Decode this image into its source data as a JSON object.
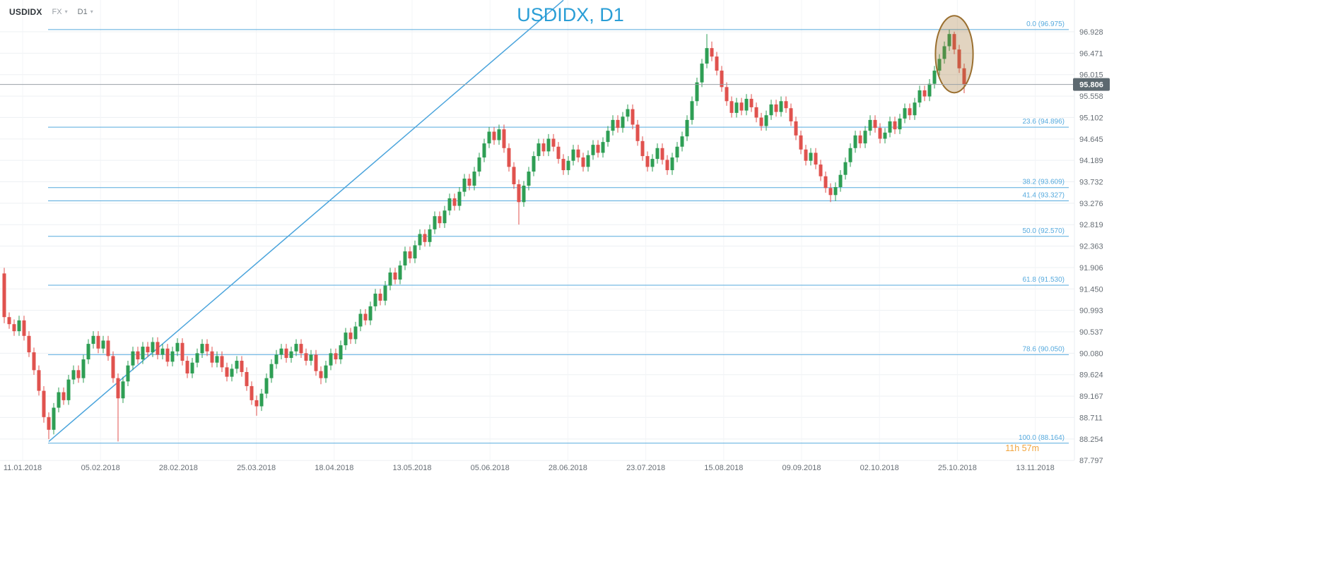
{
  "instrument_bar": {
    "symbol": "USDIDX",
    "market": "FX",
    "timeframe": "D1"
  },
  "icons": {
    "chevron_down": "▾"
  },
  "chart_title": "USDIDX, D1",
  "current_price": "95.806",
  "countdown": "11h 57m",
  "chart_data": {
    "type": "candlestick",
    "symbol": "USDIDX",
    "timeframe": "D1",
    "title": "USDIDX, D1",
    "grid": true,
    "ylim": [
      87.797,
      96.928
    ],
    "price_tick_labels": [
      "96.928",
      "96.471",
      "96.015",
      "95.558",
      "95.102",
      "94.645",
      "94.189",
      "93.732",
      "93.276",
      "92.819",
      "92.363",
      "91.906",
      "91.450",
      "90.993",
      "90.537",
      "90.080",
      "89.624",
      "89.167",
      "88.711",
      "88.254",
      "87.797"
    ],
    "date_tick_labels": [
      "11.01.2018",
      "05.02.2018",
      "28.02.2018",
      "25.03.2018",
      "18.04.2018",
      "13.05.2018",
      "05.06.2018",
      "28.06.2018",
      "23.07.2018",
      "15.08.2018",
      "09.09.2018",
      "02.10.2018",
      "25.10.2018",
      "13.11.2018"
    ],
    "current_price": 95.806,
    "fib_levels": [
      {
        "label": "0.0 (96.975)",
        "price": 96.975
      },
      {
        "label": "23.6 (94.896)",
        "price": 94.896
      },
      {
        "label": "38.2 (93.609)",
        "price": 93.609
      },
      {
        "label": "41.4 (93.327)",
        "price": 93.327
      },
      {
        "label": "50.0 (92.570)",
        "price": 92.57
      },
      {
        "label": "61.8 (91.530)",
        "price": 91.53
      },
      {
        "label": "78.6 (90.050)",
        "price": 90.05
      },
      {
        "label": "100.0 (88.164)",
        "price": 88.164
      }
    ],
    "trendline": {
      "bar1": 9,
      "price1": 88.2,
      "bar2": 113,
      "price2": 97.6
    },
    "highlight_ellipse": {
      "bar": 192,
      "price": 96.45,
      "rx_bars": 3.8,
      "ry_price": 0.82
    },
    "colors": {
      "up": "#2e9e54",
      "down": "#e0524e",
      "fib": "#56aade",
      "trend": "#4aa4dc",
      "title": "#2a9ed6",
      "price_line": "#9aa1a7",
      "badge_bg": "#5d6970",
      "badge_text": "#ffffff",
      "countdown": "#f1a53e",
      "axis_text": "#676e75",
      "grid_h": "#edf0f3",
      "grid_v": "#f3f5f7"
    },
    "candles": [
      [
        91.78,
        91.9,
        90.72,
        90.85
      ],
      [
        90.85,
        90.95,
        90.6,
        90.7
      ],
      [
        90.7,
        90.8,
        90.45,
        90.55
      ],
      [
        90.55,
        90.88,
        90.45,
        90.78
      ],
      [
        90.78,
        90.88,
        90.35,
        90.45
      ],
      [
        90.45,
        90.55,
        90.0,
        90.1
      ],
      [
        90.1,
        90.2,
        89.62,
        89.72
      ],
      [
        89.72,
        89.82,
        89.18,
        89.28
      ],
      [
        89.28,
        89.38,
        88.6,
        88.72
      ],
      [
        88.72,
        88.82,
        88.25,
        88.45
      ],
      [
        88.45,
        89.02,
        88.35,
        88.92
      ],
      [
        88.92,
        89.35,
        88.82,
        89.25
      ],
      [
        89.25,
        89.35,
        88.98,
        89.08
      ],
      [
        89.08,
        89.62,
        88.98,
        89.52
      ],
      [
        89.52,
        89.82,
        89.42,
        89.72
      ],
      [
        89.72,
        89.82,
        89.45,
        89.55
      ],
      [
        89.55,
        90.05,
        89.45,
        89.95
      ],
      [
        89.95,
        90.38,
        89.85,
        90.28
      ],
      [
        90.28,
        90.55,
        90.18,
        90.45
      ],
      [
        90.45,
        90.55,
        90.08,
        90.18
      ],
      [
        90.18,
        90.45,
        90.08,
        90.35
      ],
      [
        90.35,
        90.45,
        89.92,
        90.02
      ],
      [
        90.02,
        90.12,
        89.45,
        89.55
      ],
      [
        89.55,
        89.65,
        88.2,
        89.12
      ],
      [
        89.12,
        89.58,
        89.02,
        89.48
      ],
      [
        89.48,
        89.92,
        89.38,
        89.82
      ],
      [
        89.82,
        90.22,
        89.72,
        90.12
      ],
      [
        90.12,
        90.22,
        89.85,
        89.95
      ],
      [
        89.95,
        90.32,
        89.85,
        90.22
      ],
      [
        90.22,
        90.32,
        90.0,
        90.1
      ],
      [
        90.1,
        90.42,
        90.0,
        90.32
      ],
      [
        90.32,
        90.42,
        89.95,
        90.05
      ],
      [
        90.05,
        90.28,
        89.95,
        90.18
      ],
      [
        90.18,
        90.28,
        89.8,
        89.9
      ],
      [
        89.9,
        90.22,
        89.8,
        90.12
      ],
      [
        90.12,
        90.4,
        90.02,
        90.3
      ],
      [
        90.3,
        90.4,
        89.82,
        89.92
      ],
      [
        89.92,
        90.02,
        89.55,
        89.65
      ],
      [
        89.65,
        89.98,
        89.55,
        89.88
      ],
      [
        89.88,
        90.18,
        89.78,
        90.08
      ],
      [
        90.08,
        90.38,
        89.98,
        90.28
      ],
      [
        90.28,
        90.38,
        90.02,
        90.12
      ],
      [
        90.12,
        90.22,
        89.78,
        89.88
      ],
      [
        89.88,
        90.12,
        89.78,
        90.02
      ],
      [
        90.02,
        90.12,
        89.68,
        89.78
      ],
      [
        89.78,
        89.88,
        89.48,
        89.58
      ],
      [
        89.58,
        89.85,
        89.48,
        89.75
      ],
      [
        89.75,
        90.02,
        89.65,
        89.92
      ],
      [
        89.92,
        90.02,
        89.58,
        89.68
      ],
      [
        89.68,
        89.78,
        89.28,
        89.38
      ],
      [
        89.38,
        89.48,
        88.98,
        89.08
      ],
      [
        89.08,
        89.18,
        88.75,
        88.95
      ],
      [
        88.95,
        89.32,
        88.85,
        89.22
      ],
      [
        89.22,
        89.65,
        89.12,
        89.55
      ],
      [
        89.55,
        89.95,
        89.45,
        89.85
      ],
      [
        89.85,
        90.15,
        89.75,
        90.05
      ],
      [
        90.05,
        90.28,
        89.95,
        90.18
      ],
      [
        90.18,
        90.28,
        89.88,
        89.98
      ],
      [
        89.98,
        90.22,
        89.88,
        90.12
      ],
      [
        90.12,
        90.38,
        90.02,
        90.28
      ],
      [
        90.28,
        90.38,
        89.98,
        90.08
      ],
      [
        90.08,
        90.18,
        89.82,
        89.92
      ],
      [
        89.92,
        90.15,
        89.82,
        90.05
      ],
      [
        90.05,
        90.15,
        89.6,
        89.7
      ],
      [
        89.7,
        89.8,
        89.42,
        89.55
      ],
      [
        89.55,
        89.92,
        89.45,
        89.82
      ],
      [
        89.82,
        90.18,
        89.72,
        90.08
      ],
      [
        90.08,
        90.18,
        89.85,
        89.95
      ],
      [
        89.95,
        90.35,
        89.85,
        90.25
      ],
      [
        90.25,
        90.62,
        90.15,
        90.52
      ],
      [
        90.52,
        90.62,
        90.28,
        90.38
      ],
      [
        90.38,
        90.75,
        90.28,
        90.65
      ],
      [
        90.65,
        91.02,
        90.55,
        90.92
      ],
      [
        90.92,
        91.02,
        90.68,
        90.78
      ],
      [
        90.78,
        91.18,
        90.68,
        91.08
      ],
      [
        91.08,
        91.45,
        90.98,
        91.35
      ],
      [
        91.35,
        91.45,
        91.1,
        91.2
      ],
      [
        91.2,
        91.62,
        91.1,
        91.52
      ],
      [
        91.52,
        91.9,
        91.42,
        91.8
      ],
      [
        91.8,
        91.9,
        91.55,
        91.65
      ],
      [
        91.65,
        92.05,
        91.55,
        91.95
      ],
      [
        91.95,
        92.35,
        91.85,
        92.25
      ],
      [
        92.25,
        92.35,
        92.0,
        92.1
      ],
      [
        92.1,
        92.48,
        92.0,
        92.38
      ],
      [
        92.38,
        92.72,
        92.28,
        92.62
      ],
      [
        92.62,
        92.72,
        92.35,
        92.45
      ],
      [
        92.45,
        92.82,
        92.35,
        92.72
      ],
      [
        92.72,
        93.1,
        92.62,
        93.0
      ],
      [
        93.0,
        93.1,
        92.75,
        92.85
      ],
      [
        92.85,
        93.22,
        92.75,
        93.12
      ],
      [
        93.12,
        93.48,
        93.02,
        93.38
      ],
      [
        93.38,
        93.48,
        93.12,
        93.22
      ],
      [
        93.22,
        93.62,
        93.12,
        93.52
      ],
      [
        93.52,
        93.9,
        93.42,
        93.8
      ],
      [
        93.8,
        93.9,
        93.55,
        93.65
      ],
      [
        93.65,
        94.05,
        93.55,
        93.95
      ],
      [
        93.95,
        94.35,
        93.85,
        94.25
      ],
      [
        94.25,
        94.65,
        94.15,
        94.55
      ],
      [
        94.55,
        94.9,
        94.45,
        94.8
      ],
      [
        94.8,
        94.9,
        94.52,
        94.62
      ],
      [
        94.62,
        94.95,
        94.52,
        94.85
      ],
      [
        94.85,
        94.95,
        94.35,
        94.45
      ],
      [
        94.45,
        94.55,
        93.95,
        94.05
      ],
      [
        94.05,
        94.15,
        93.58,
        93.68
      ],
      [
        93.68,
        93.78,
        92.82,
        93.3
      ],
      [
        93.3,
        93.75,
        93.2,
        93.65
      ],
      [
        93.65,
        94.05,
        93.55,
        93.95
      ],
      [
        93.95,
        94.38,
        93.85,
        94.28
      ],
      [
        94.28,
        94.65,
        94.18,
        94.55
      ],
      [
        94.55,
        94.65,
        94.28,
        94.38
      ],
      [
        94.38,
        94.75,
        94.28,
        94.65
      ],
      [
        94.65,
        94.75,
        94.38,
        94.48
      ],
      [
        94.48,
        94.58,
        94.12,
        94.22
      ],
      [
        94.22,
        94.32,
        93.88,
        93.98
      ],
      [
        93.98,
        94.28,
        93.88,
        94.18
      ],
      [
        94.18,
        94.52,
        94.08,
        94.42
      ],
      [
        94.42,
        94.52,
        94.15,
        94.25
      ],
      [
        94.25,
        94.35,
        93.95,
        94.05
      ],
      [
        94.05,
        94.4,
        93.95,
        94.3
      ],
      [
        94.3,
        94.62,
        94.2,
        94.52
      ],
      [
        94.52,
        94.62,
        94.25,
        94.35
      ],
      [
        94.35,
        94.68,
        94.25,
        94.58
      ],
      [
        94.58,
        94.92,
        94.48,
        94.82
      ],
      [
        94.82,
        95.15,
        94.72,
        95.05
      ],
      [
        95.05,
        95.15,
        94.78,
        94.88
      ],
      [
        94.88,
        95.22,
        94.78,
        95.12
      ],
      [
        95.12,
        95.38,
        95.02,
        95.28
      ],
      [
        95.28,
        95.38,
        94.85,
        94.95
      ],
      [
        94.95,
        95.05,
        94.5,
        94.6
      ],
      [
        94.6,
        94.7,
        94.18,
        94.28
      ],
      [
        94.28,
        94.38,
        93.95,
        94.05
      ],
      [
        94.05,
        94.32,
        93.95,
        94.22
      ],
      [
        94.22,
        94.55,
        94.12,
        94.45
      ],
      [
        94.45,
        94.55,
        94.1,
        94.2
      ],
      [
        94.2,
        94.3,
        93.88,
        93.98
      ],
      [
        93.98,
        94.35,
        93.88,
        94.25
      ],
      [
        94.25,
        94.58,
        94.15,
        94.48
      ],
      [
        94.48,
        94.8,
        94.38,
        94.7
      ],
      [
        94.7,
        95.15,
        94.6,
        95.05
      ],
      [
        95.05,
        95.55,
        94.95,
        95.45
      ],
      [
        95.45,
        95.95,
        95.35,
        95.85
      ],
      [
        95.85,
        96.35,
        95.75,
        96.25
      ],
      [
        96.25,
        96.88,
        96.15,
        96.58
      ],
      [
        96.58,
        96.72,
        96.3,
        96.4
      ],
      [
        96.4,
        96.5,
        96.0,
        96.1
      ],
      [
        96.1,
        96.2,
        95.65,
        95.75
      ],
      [
        95.75,
        95.85,
        95.35,
        95.45
      ],
      [
        95.45,
        95.55,
        95.1,
        95.2
      ],
      [
        95.2,
        95.52,
        95.1,
        95.42
      ],
      [
        95.42,
        95.52,
        95.15,
        95.25
      ],
      [
        95.25,
        95.6,
        95.15,
        95.5
      ],
      [
        95.5,
        95.6,
        95.22,
        95.32
      ],
      [
        95.32,
        95.42,
        95.0,
        95.1
      ],
      [
        95.1,
        95.2,
        94.82,
        94.92
      ],
      [
        94.92,
        95.25,
        94.82,
        95.15
      ],
      [
        95.15,
        95.48,
        95.05,
        95.38
      ],
      [
        95.38,
        95.48,
        95.12,
        95.22
      ],
      [
        95.22,
        95.55,
        95.12,
        95.45
      ],
      [
        95.45,
        95.55,
        95.2,
        95.3
      ],
      [
        95.3,
        95.4,
        94.92,
        95.02
      ],
      [
        95.02,
        95.12,
        94.62,
        94.72
      ],
      [
        94.72,
        94.82,
        94.32,
        94.42
      ],
      [
        94.42,
        94.52,
        94.08,
        94.18
      ],
      [
        94.18,
        94.45,
        94.08,
        94.35
      ],
      [
        94.35,
        94.45,
        94.0,
        94.1
      ],
      [
        94.1,
        94.2,
        93.75,
        93.85
      ],
      [
        93.85,
        93.95,
        93.5,
        93.6
      ],
      [
        93.6,
        93.7,
        93.3,
        93.45
      ],
      [
        93.45,
        93.72,
        93.32,
        93.62
      ],
      [
        93.62,
        93.98,
        93.52,
        93.88
      ],
      [
        93.88,
        94.25,
        93.78,
        94.15
      ],
      [
        94.15,
        94.55,
        94.05,
        94.45
      ],
      [
        94.45,
        94.82,
        94.35,
        94.72
      ],
      [
        94.72,
        94.82,
        94.45,
        94.55
      ],
      [
        94.55,
        94.92,
        94.45,
        94.82
      ],
      [
        94.82,
        95.15,
        94.72,
        95.05
      ],
      [
        95.05,
        95.15,
        94.78,
        94.88
      ],
      [
        94.88,
        94.98,
        94.55,
        94.65
      ],
      [
        94.65,
        94.88,
        94.55,
        94.78
      ],
      [
        94.78,
        95.12,
        94.68,
        95.02
      ],
      [
        95.02,
        95.12,
        94.75,
        94.85
      ],
      [
        94.85,
        95.18,
        94.75,
        95.08
      ],
      [
        95.08,
        95.4,
        94.98,
        95.3
      ],
      [
        95.3,
        95.4,
        95.05,
        95.15
      ],
      [
        95.15,
        95.52,
        95.05,
        95.42
      ],
      [
        95.42,
        95.78,
        95.32,
        95.68
      ],
      [
        95.68,
        95.78,
        95.45,
        95.55
      ],
      [
        95.55,
        95.92,
        95.45,
        95.82
      ],
      [
        95.82,
        96.2,
        95.72,
        96.1
      ],
      [
        96.1,
        96.45,
        96.0,
        96.35
      ],
      [
        96.35,
        96.72,
        96.25,
        96.62
      ],
      [
        96.62,
        96.975,
        96.52,
        96.88
      ],
      [
        96.88,
        96.93,
        96.45,
        96.55
      ],
      [
        96.55,
        96.65,
        96.05,
        96.15
      ],
      [
        96.15,
        96.25,
        95.62,
        95.806
      ]
    ]
  }
}
